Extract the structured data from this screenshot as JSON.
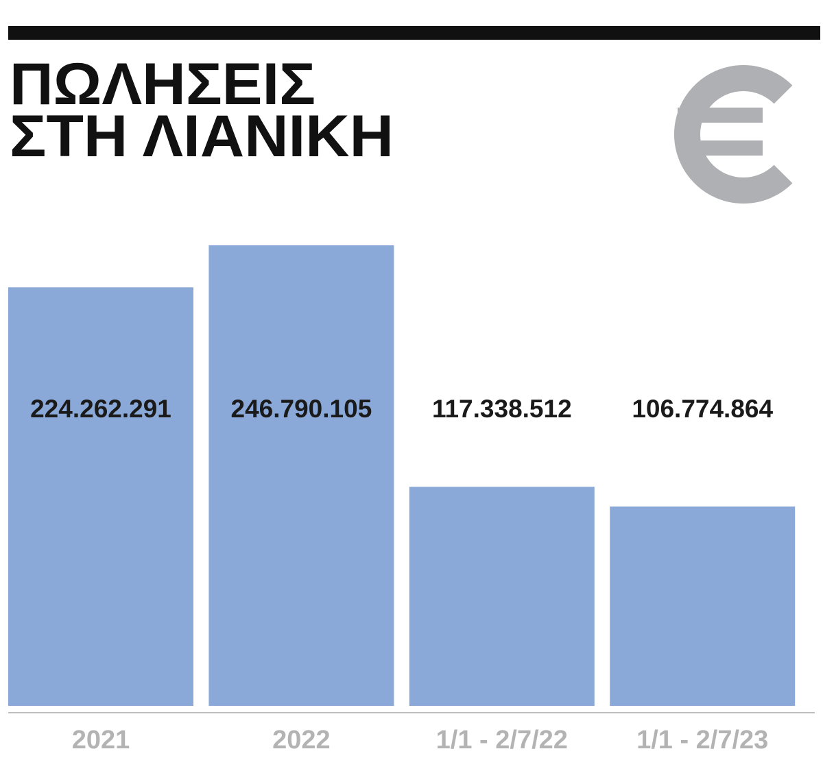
{
  "chart_data": {
    "type": "bar",
    "title": [
      "ΠΩΛΗΣΕΙΣ",
      "ΣΤΗ ΛΙΑΝΙΚΗ"
    ],
    "categories": [
      "2021",
      "2022",
      "1/1 - 2/7/22",
      "1/1 - 2/7/23"
    ],
    "values": [
      224262291,
      246790105,
      117338512,
      106774864
    ],
    "value_labels": [
      "224.262.291",
      "246.790.105",
      "117.338.512",
      "106.774.864"
    ],
    "color": "#8aa9d8",
    "ylim": [
      0,
      300000000
    ]
  }
}
